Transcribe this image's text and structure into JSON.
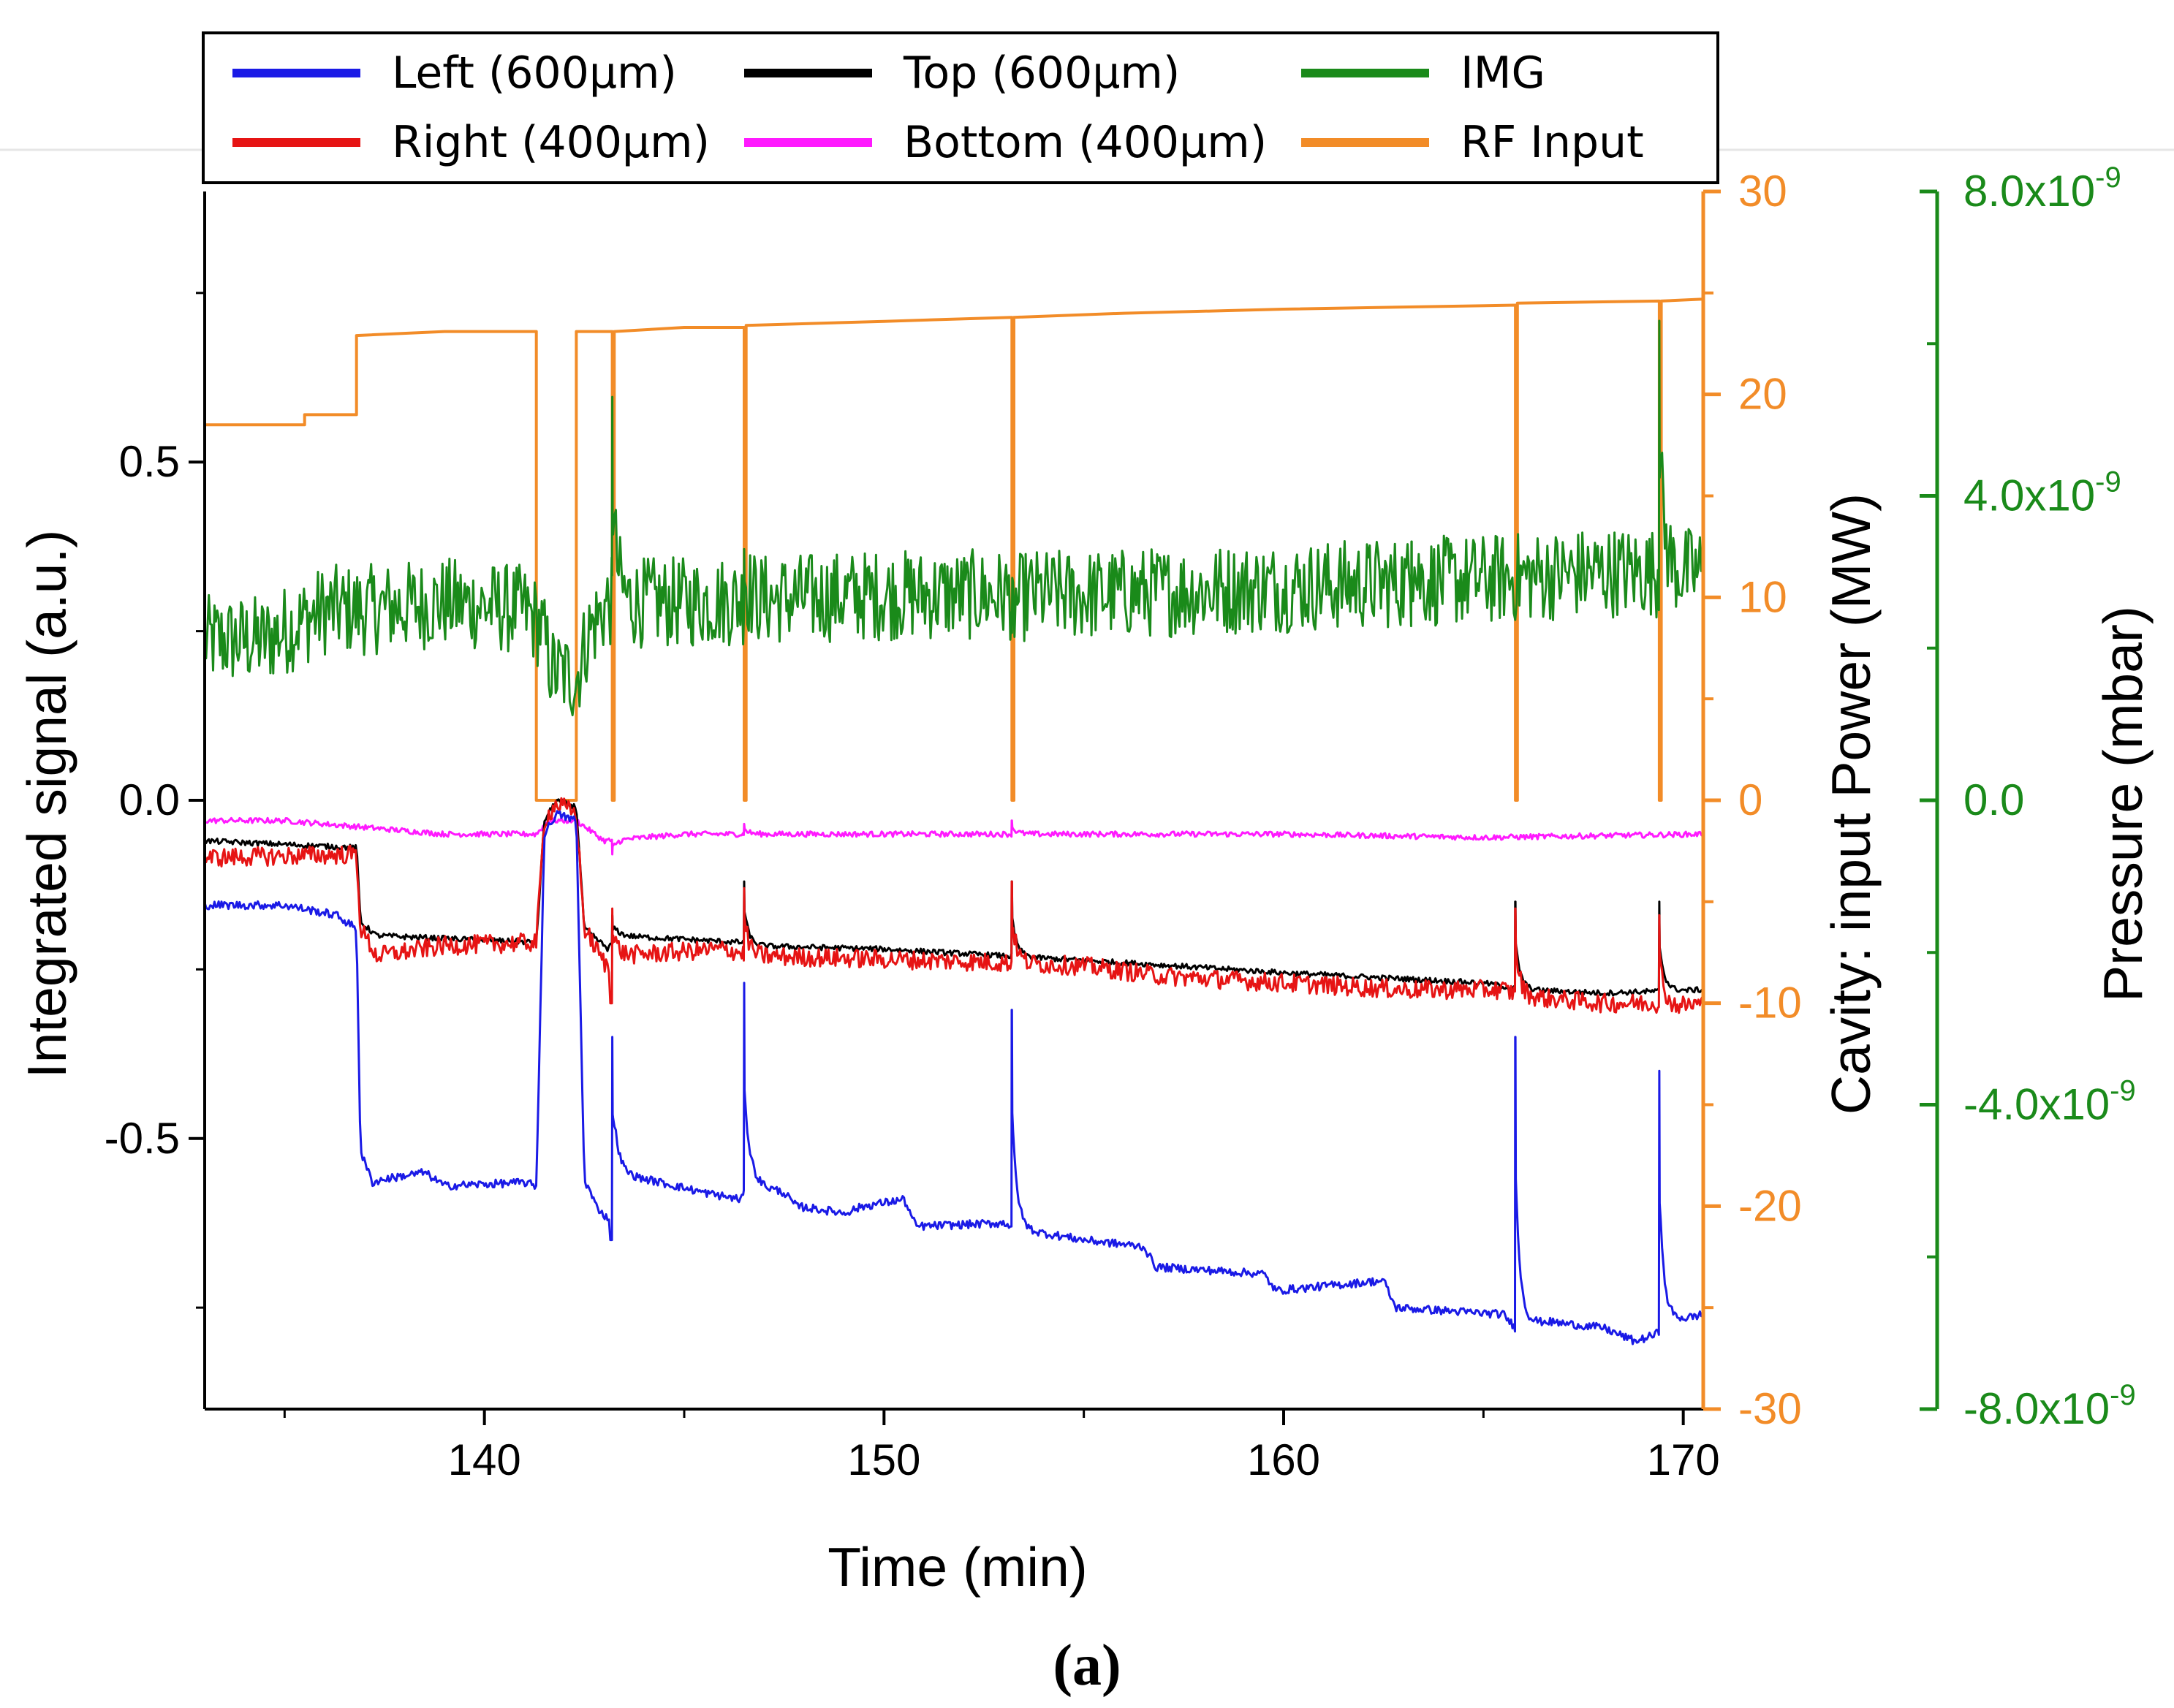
{
  "caption": "(a)",
  "chart_data": {
    "type": "line",
    "x_axis": {
      "label": "Time (min)",
      "range": [
        133,
        170.5
      ],
      "ticks": [
        140,
        150,
        160,
        170
      ],
      "tick_labels": [
        "140",
        "150",
        "160",
        "170"
      ],
      "minor_ticks": [
        135,
        145,
        155,
        165
      ]
    },
    "y_axis_left": {
      "label": "Integrated signal (a.u.)",
      "range": [
        -0.9,
        0.9
      ],
      "ticks": [
        0.5,
        0.0,
        -0.5
      ],
      "tick_labels": [
        "0.5",
        "0.0",
        "-0.5"
      ],
      "minor_ticks": [
        0.75,
        0.25,
        -0.25,
        -0.75
      ]
    },
    "y_axis_right_power": {
      "label": "Cavity: input Power (MW)",
      "color": "#f28c28",
      "range": [
        -30,
        30
      ],
      "ticks": [
        30,
        20,
        10,
        0,
        -10,
        -20,
        -30
      ],
      "tick_labels": [
        "30",
        "20",
        "10",
        "0",
        "-10",
        "-20",
        "-30"
      ],
      "minor_ticks": [
        25,
        15,
        5,
        -5,
        -15,
        -25
      ]
    },
    "y_axis_right_pressure": {
      "label": "Pressure (mbar)",
      "color": "#1a8a1a",
      "range": [
        -8e-09,
        8e-09
      ],
      "ticks": [
        8e-09,
        4e-09,
        0,
        -4e-09,
        -8e-09
      ],
      "tick_labels": [
        {
          "mantissa": "8.0x10",
          "exp": "-9"
        },
        {
          "mantissa": "4.0x10",
          "exp": "-9"
        },
        {
          "mantissa": "0.0",
          "exp": ""
        },
        {
          "mantissa": "-4.0x10",
          "exp": "-9"
        },
        {
          "mantissa": "-8.0x10",
          "exp": "-9"
        }
      ],
      "minor_ticks": [
        6e-09,
        2e-09,
        -2e-09,
        -6e-09
      ]
    },
    "spike_times": [
      143.2,
      146.5,
      153.2,
      165.8,
      169.4
    ],
    "series": [
      {
        "name": "Left (600µm)",
        "color": "#1a1ae6",
        "axis": "left",
        "noise": 0.006,
        "base": [
          [
            133,
            -0.155
          ],
          [
            135,
            -0.155
          ],
          [
            136.3,
            -0.17
          ],
          [
            136.8,
            -0.19
          ],
          [
            136.9,
            -0.52
          ],
          [
            137.2,
            -0.565
          ],
          [
            137.5,
            -0.56
          ],
          [
            138.5,
            -0.55
          ],
          [
            139,
            -0.57
          ],
          [
            141,
            -0.565
          ],
          [
            141.3,
            -0.57
          ],
          [
            141.5,
            -0.05
          ],
          [
            141.8,
            -0.02
          ],
          [
            142.3,
            -0.03
          ],
          [
            142.5,
            -0.56
          ],
          [
            142.8,
            -0.6
          ],
          [
            143.1,
            -0.62
          ],
          [
            143.3,
            -0.55
          ],
          [
            145.5,
            -0.58
          ],
          [
            146.4,
            -0.59
          ],
          [
            146.7,
            -0.565
          ],
          [
            147.5,
            -0.58
          ],
          [
            147.8,
            -0.6
          ],
          [
            149,
            -0.61
          ],
          [
            149.5,
            -0.6
          ],
          [
            150.5,
            -0.59
          ],
          [
            150.8,
            -0.63
          ],
          [
            153,
            -0.625
          ],
          [
            153.5,
            -0.635
          ],
          [
            155,
            -0.65
          ],
          [
            156.5,
            -0.66
          ],
          [
            156.8,
            -0.69
          ],
          [
            159.5,
            -0.7
          ],
          [
            159.8,
            -0.725
          ],
          [
            162.5,
            -0.71
          ],
          [
            162.8,
            -0.75
          ],
          [
            165.5,
            -0.76
          ],
          [
            165.8,
            -0.78
          ],
          [
            166.5,
            -0.77
          ],
          [
            168,
            -0.78
          ],
          [
            168.8,
            -0.8
          ],
          [
            169.3,
            -0.79
          ],
          [
            169.7,
            -0.77
          ],
          [
            170.5,
            -0.76
          ]
        ],
        "spikes": [
          [
            143.2,
            -0.35,
            -0.65
          ],
          [
            146.5,
            -0.27,
            null
          ],
          [
            153.2,
            -0.31,
            null
          ],
          [
            165.8,
            -0.35,
            null
          ],
          [
            169.4,
            -0.4,
            null
          ]
        ]
      },
      {
        "name": "Right (400µm)",
        "color": "#e61414",
        "axis": "left",
        "noise": 0.014,
        "base": [
          [
            133,
            -0.085
          ],
          [
            136.8,
            -0.08
          ],
          [
            136.9,
            -0.19
          ],
          [
            137.3,
            -0.23
          ],
          [
            139,
            -0.215
          ],
          [
            141.3,
            -0.21
          ],
          [
            141.5,
            -0.03
          ],
          [
            141.8,
            -0.005
          ],
          [
            142.3,
            -0.02
          ],
          [
            142.5,
            -0.19
          ],
          [
            143.1,
            -0.25
          ],
          [
            143.3,
            -0.23
          ],
          [
            146,
            -0.22
          ],
          [
            146.4,
            -0.225
          ],
          [
            146.7,
            -0.23
          ],
          [
            150,
            -0.235
          ],
          [
            153,
            -0.24
          ],
          [
            155,
            -0.245
          ],
          [
            157,
            -0.26
          ],
          [
            160,
            -0.27
          ],
          [
            163,
            -0.28
          ],
          [
            165.5,
            -0.28
          ],
          [
            166,
            -0.29
          ],
          [
            168,
            -0.3
          ],
          [
            169.3,
            -0.3
          ],
          [
            169.7,
            -0.305
          ],
          [
            170.5,
            -0.3
          ]
        ],
        "spikes": [
          [
            143.2,
            -0.16,
            -0.3
          ],
          [
            146.5,
            -0.13,
            null
          ],
          [
            153.2,
            -0.12,
            null
          ],
          [
            165.8,
            -0.16,
            null
          ],
          [
            169.4,
            -0.17,
            null
          ]
        ]
      },
      {
        "name": "Top (600µm)",
        "color": "#000000",
        "axis": "left",
        "noise": 0.004,
        "base": [
          [
            133,
            -0.06
          ],
          [
            136.8,
            -0.07
          ],
          [
            136.9,
            -0.18
          ],
          [
            137.3,
            -0.2
          ],
          [
            141.3,
            -0.21
          ],
          [
            141.5,
            -0.03
          ],
          [
            141.8,
            0.0
          ],
          [
            142.3,
            -0.01
          ],
          [
            142.5,
            -0.19
          ],
          [
            143.1,
            -0.22
          ],
          [
            143.3,
            -0.2
          ],
          [
            146.4,
            -0.21
          ],
          [
            146.7,
            -0.215
          ],
          [
            150,
            -0.22
          ],
          [
            153,
            -0.23
          ],
          [
            156,
            -0.24
          ],
          [
            160,
            -0.255
          ],
          [
            165,
            -0.27
          ],
          [
            166,
            -0.28
          ],
          [
            168,
            -0.285
          ],
          [
            170.5,
            -0.28
          ]
        ],
        "spikes": [
          [
            143.2,
            -0.17,
            null
          ],
          [
            146.5,
            -0.12,
            null
          ],
          [
            153.2,
            -0.12,
            null
          ],
          [
            165.8,
            -0.15,
            null
          ],
          [
            169.4,
            -0.15,
            null
          ]
        ]
      },
      {
        "name": "Bottom (400µm)",
        "color": "#ff1aff",
        "axis": "left",
        "noise": 0.004,
        "base": [
          [
            133,
            -0.03
          ],
          [
            135,
            -0.03
          ],
          [
            136,
            -0.035
          ],
          [
            137,
            -0.04
          ],
          [
            139,
            -0.05
          ],
          [
            141.3,
            -0.05
          ],
          [
            141.6,
            -0.03
          ],
          [
            142.3,
            -0.03
          ],
          [
            143,
            -0.06
          ],
          [
            145,
            -0.05
          ],
          [
            150,
            -0.05
          ],
          [
            155,
            -0.05
          ],
          [
            160,
            -0.05
          ],
          [
            165,
            -0.055
          ],
          [
            170.5,
            -0.05
          ]
        ],
        "spikes": [
          [
            143.2,
            -0.08,
            null
          ],
          [
            146.5,
            -0.035,
            null
          ],
          [
            153.2,
            -0.03,
            null
          ]
        ]
      },
      {
        "name": "IMG",
        "color": "#1a8a1a",
        "axis": "pressure",
        "noise": 6e-10,
        "base": [
          [
            133,
            2.1e-09
          ],
          [
            134.5,
            2.1e-09
          ],
          [
            136,
            2.5e-09
          ],
          [
            137,
            2.5e-09
          ],
          [
            139,
            2.6e-09
          ],
          [
            141,
            2.5e-09
          ],
          [
            141.4,
            2.3e-09
          ],
          [
            141.7,
            1.7e-09
          ],
          [
            142.3,
            1.6e-09
          ],
          [
            142.6,
            2.2e-09
          ],
          [
            143.1,
            2.6e-09
          ],
          [
            145,
            2.6e-09
          ],
          [
            150,
            2.7e-09
          ],
          [
            155,
            2.7e-09
          ],
          [
            160,
            2.8e-09
          ],
          [
            165,
            2.9e-09
          ],
          [
            168,
            3e-09
          ],
          [
            170.5,
            3e-09
          ]
        ],
        "spikes": [
          [
            143.2,
            5.3e-09,
            null
          ],
          [
            146.5,
            3.3e-09,
            null
          ],
          [
            153.2,
            2.2e-09,
            null
          ],
          [
            163.2,
            3.4e-09,
            null
          ],
          [
            169.4,
            6.3e-09,
            null
          ]
        ]
      },
      {
        "name": "RF Input",
        "color": "#f28c28",
        "axis": "power",
        "points": [
          [
            133,
            18.5
          ],
          [
            135.5,
            18.5
          ],
          [
            135.5,
            19
          ],
          [
            136.8,
            19
          ],
          [
            136.8,
            22.9
          ],
          [
            139,
            23.1
          ],
          [
            141.3,
            23.1
          ],
          [
            141.3,
            0
          ],
          [
            142.3,
            0
          ],
          [
            142.3,
            23.1
          ],
          [
            143.2,
            23.1
          ],
          [
            143.2,
            0
          ],
          [
            143.25,
            0
          ],
          [
            143.25,
            23.1
          ],
          [
            145,
            23.3
          ],
          [
            146.5,
            23.3
          ],
          [
            146.5,
            0
          ],
          [
            146.55,
            0
          ],
          [
            146.55,
            23.4
          ],
          [
            150,
            23.6
          ],
          [
            153.2,
            23.8
          ],
          [
            153.2,
            0
          ],
          [
            153.25,
            0
          ],
          [
            153.25,
            23.8
          ],
          [
            156,
            24.0
          ],
          [
            160,
            24.2
          ],
          [
            165.8,
            24.4
          ],
          [
            165.8,
            0
          ],
          [
            165.85,
            0
          ],
          [
            165.85,
            24.5
          ],
          [
            169.4,
            24.6
          ],
          [
            169.4,
            0
          ],
          [
            169.45,
            0
          ],
          [
            169.45,
            24.6
          ],
          [
            170.5,
            24.7
          ]
        ]
      }
    ],
    "legend": {
      "placement": "top",
      "entries": [
        {
          "label": "Left (600µm)",
          "color": "#1a1ae6"
        },
        {
          "label": "Top (600µm)",
          "color": "#000000"
        },
        {
          "label": "IMG",
          "color": "#1a8a1a"
        },
        {
          "label": "Right (400µm)",
          "color": "#e61414"
        },
        {
          "label": "Bottom (400µm)",
          "color": "#ff1aff"
        },
        {
          "label": "RF Input",
          "color": "#f28c28"
        }
      ]
    }
  }
}
